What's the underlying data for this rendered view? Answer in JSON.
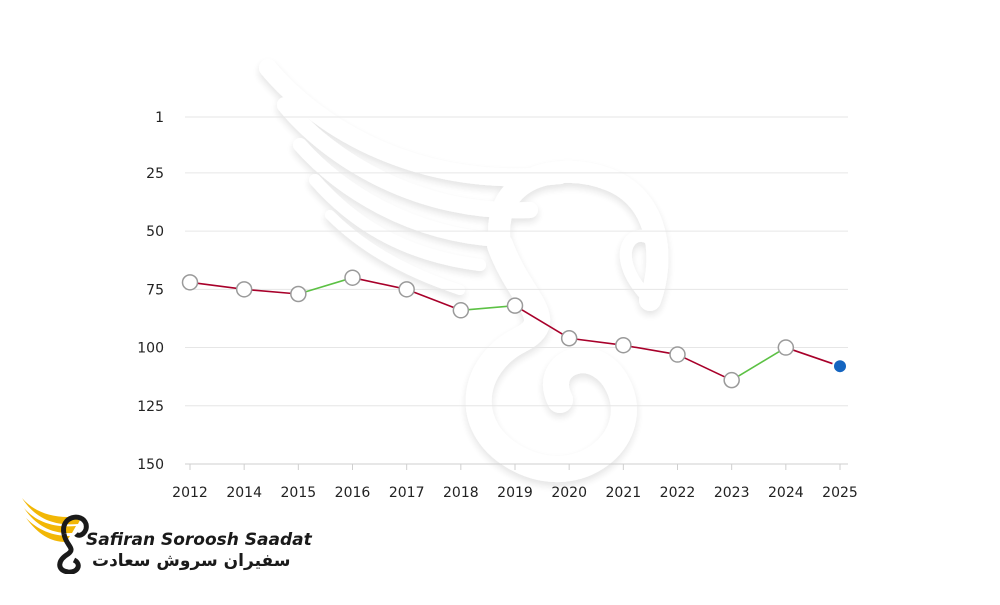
{
  "brand": {
    "name_en": "Safiran Soroosh Saadat",
    "name_fa": "سفیران سروش سعادت"
  },
  "colors": {
    "down": "#a8002a",
    "up": "#5cc144",
    "latest_point": "#1565c0",
    "marker_fill": "#ffffff",
    "marker_stroke": "#9a9a9a",
    "grid": "#e6e6e6",
    "logo_yellow": "#f2b705",
    "logo_dark": "#1a1a1a"
  },
  "chart_data": {
    "type": "line",
    "title": "",
    "xlabel": "",
    "ylabel": "",
    "y_axis_inverted": true,
    "ylim": [
      1,
      150
    ],
    "yticks": [
      1,
      25,
      50,
      75,
      100,
      125,
      150
    ],
    "grid": true,
    "x": [
      "2012",
      "2014",
      "2015",
      "2016",
      "2017",
      "2018",
      "2019",
      "2020",
      "2021",
      "2022",
      "2023",
      "2024",
      "2025"
    ],
    "series": [
      {
        "values": [
          72,
          75,
          77,
          70,
          75,
          84,
          82,
          96,
          99,
          103,
          114,
          100,
          108
        ]
      }
    ],
    "segment_colors": "green when the value improves (rank number decreases), red when it worsens",
    "highlight_last_point": true
  }
}
